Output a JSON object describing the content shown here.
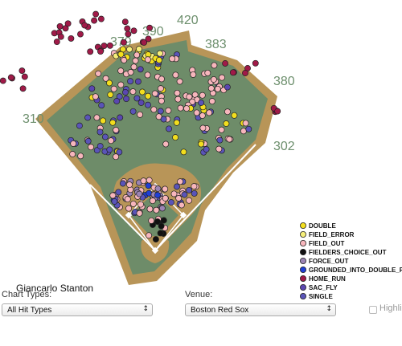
{
  "chart_data": {
    "type": "scatter",
    "title": "Giancarlo Stanton",
    "field": "Boston Red Sox",
    "distance_markers": [
      "310",
      "379",
      "390",
      "420",
      "383",
      "380",
      "302"
    ],
    "legend": [
      {
        "label": "DOUBLE",
        "color": "#f2de1e"
      },
      {
        "label": "FIELD_ERROR",
        "color": "#f5ee7a"
      },
      {
        "label": "FIELD_OUT",
        "color": "#f7b6bc"
      },
      {
        "label": "FIELDERS_CHOICE_OUT",
        "color": "#111111"
      },
      {
        "label": "FORCE_OUT",
        "color": "#9b84b4"
      },
      {
        "label": "GROUNDED_INTO_DOUBLE_PLAY",
        "color": "#1f3fd6"
      },
      {
        "label": "HOME_RUN",
        "color": "#a01a48"
      },
      {
        "label": "SAC_FLY",
        "color": "#5a47b0"
      },
      {
        "label": "SINGLE",
        "color": "#5a54b8"
      }
    ]
  },
  "controls": {
    "chart_types_label": "Chart Types:",
    "chart_types_value": "All Hit Types",
    "venue_label": "Venue:",
    "venue_value": "Boston Red Sox",
    "highlight_label": "Highlig"
  }
}
